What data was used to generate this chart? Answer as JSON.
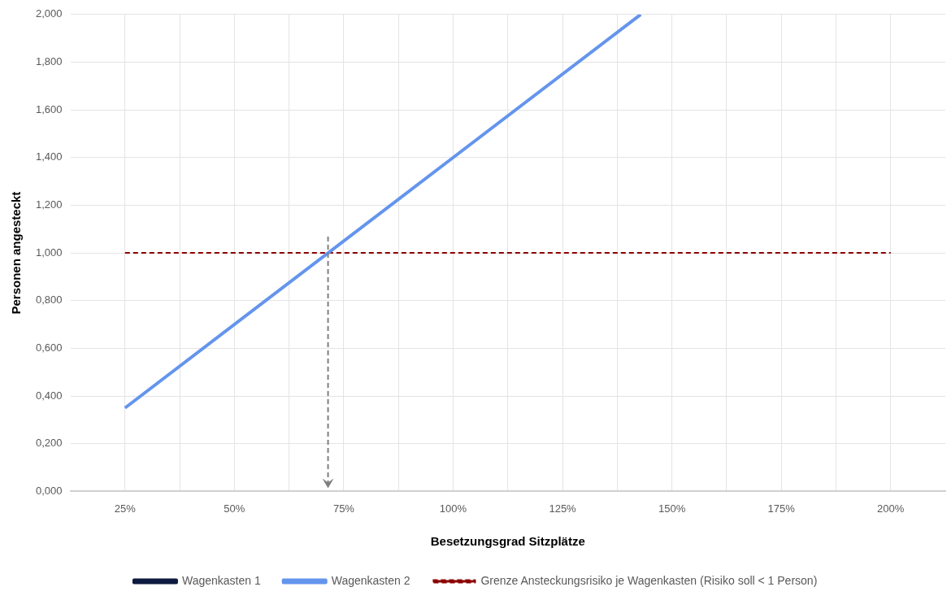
{
  "chart_data": {
    "type": "line",
    "xlabel": "Besetzungsgrad Sitzplätze",
    "ylabel": "Personen angesteckt",
    "xlim": [
      12.5,
      212.5
    ],
    "xticks": [
      {
        "value": 25,
        "label": "25%"
      },
      {
        "value": 37.5,
        "label": null
      },
      {
        "value": 50,
        "label": "50%"
      },
      {
        "value": 62.5,
        "label": null
      },
      {
        "value": 75,
        "label": "75%"
      },
      {
        "value": 87.5,
        "label": null
      },
      {
        "value": 100,
        "label": "100%"
      },
      {
        "value": 112.5,
        "label": null
      },
      {
        "value": 125,
        "label": "125%"
      },
      {
        "value": 137.5,
        "label": null
      },
      {
        "value": 150,
        "label": "150%"
      },
      {
        "value": 162.5,
        "label": null
      },
      {
        "value": 175,
        "label": "175%"
      },
      {
        "value": 187.5,
        "label": null
      },
      {
        "value": 200,
        "label": "200%"
      }
    ],
    "ylim": [
      0,
      2
    ],
    "yticks": [
      {
        "value": 0,
        "label": "0,000"
      },
      {
        "value": 0.2,
        "label": "0,200"
      },
      {
        "value": 0.4,
        "label": "0,400"
      },
      {
        "value": 0.6,
        "label": "0,600"
      },
      {
        "value": 0.8,
        "label": "0,800"
      },
      {
        "value": 1,
        "label": "1,000"
      },
      {
        "value": 1.2,
        "label": "1,200"
      },
      {
        "value": 1.4,
        "label": "1,400"
      },
      {
        "value": 1.6,
        "label": "1,600"
      },
      {
        "value": 1.8,
        "label": "1,800"
      },
      {
        "value": 2,
        "label": "2,000"
      }
    ],
    "grid": true,
    "legend": "bottom",
    "marker": "none",
    "series": [
      {
        "name": "Wagenkasten 1",
        "color": "#0d1a40"
      },
      {
        "name": "Wagenkasten 2",
        "color": "#6495ed",
        "x": [
          25,
          100,
          142.86
        ],
        "values": [
          0.35,
          1.4,
          2.0
        ]
      },
      {
        "name": "Grenze Ansteckungsrisiko je Wagenkasten (Risiko soll < 1 Person)",
        "color": "#8b0000",
        "x": [
          25,
          200
        ],
        "values": [
          1,
          1
        ],
        "line_style": "dashed"
      }
    ],
    "ref_lines": [
      {
        "axis": "x",
        "value": 71.4,
        "color": "#7f7f7f",
        "line_style": "dashed"
      }
    ]
  }
}
